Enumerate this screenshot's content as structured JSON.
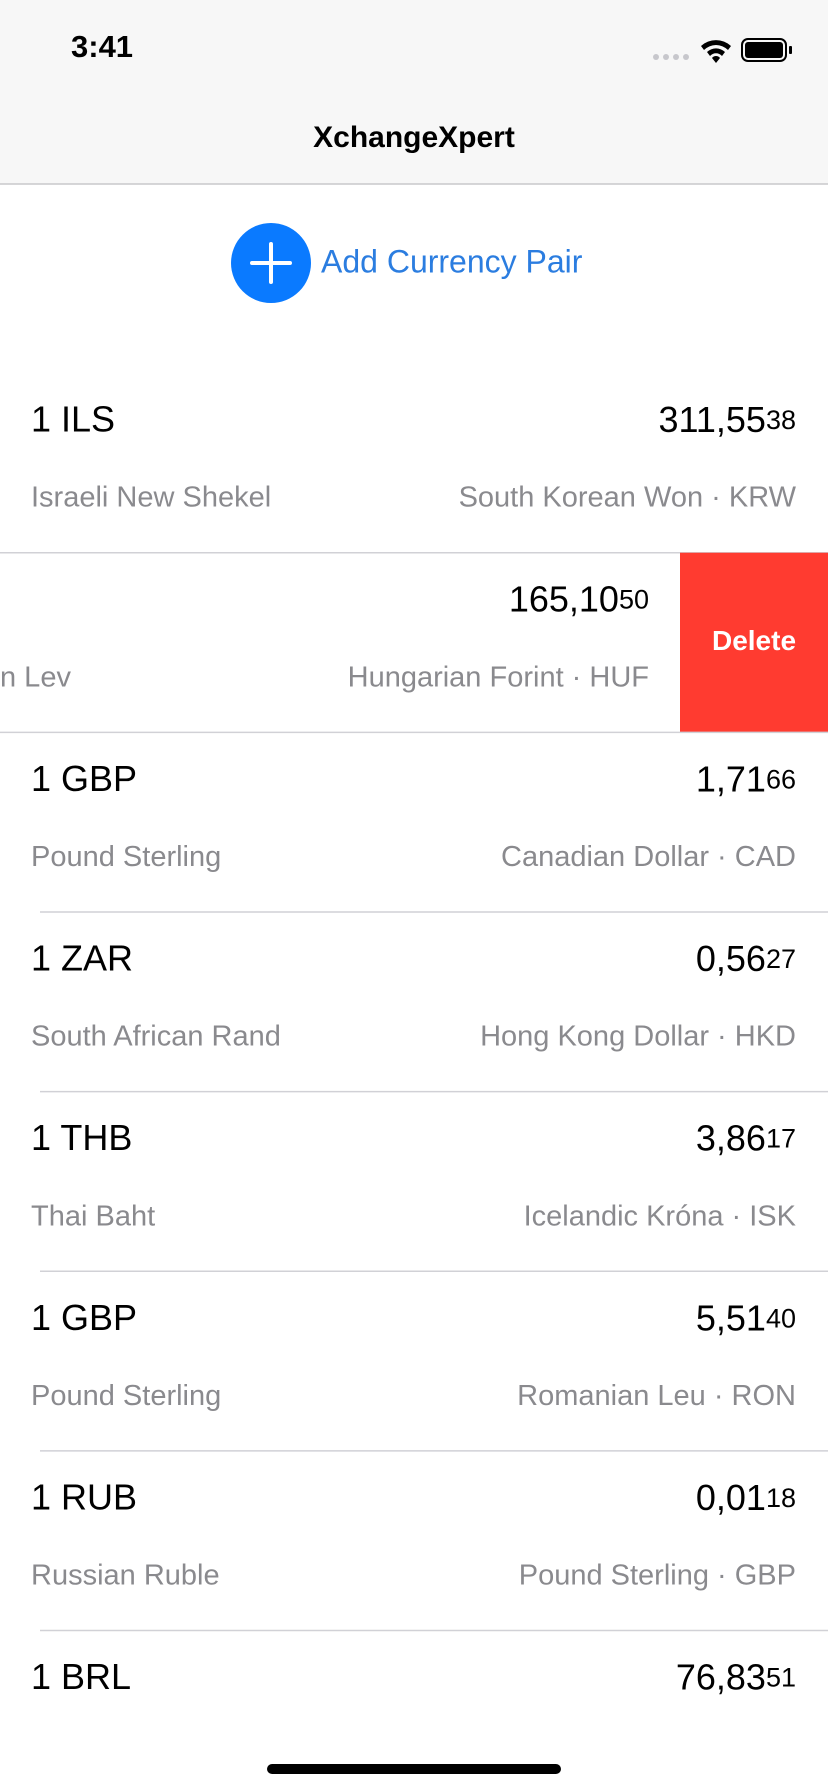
{
  "status_bar": {
    "time": "3:41"
  },
  "nav": {
    "title": "XchangeXpert"
  },
  "add_button": {
    "label": "Add Currency Pair"
  },
  "rows": [
    {
      "base": "1 ILS",
      "base_name": "Israeli New Shekel",
      "rate": "311,55",
      "rate_small": "38",
      "quote": "South Korean Won · KRW"
    },
    {
      "base_name": "n Lev",
      "rate": "165,10",
      "rate_small": "50",
      "quote": "Hungarian Forint · HUF",
      "action": "Delete"
    },
    {
      "base": "1 GBP",
      "base_name": "Pound Sterling",
      "rate": "1,71",
      "rate_small": "66",
      "quote": "Canadian Dollar · CAD"
    },
    {
      "base": "1 ZAR",
      "base_name": "South African Rand",
      "rate": "0,56",
      "rate_small": "27",
      "quote": "Hong Kong Dollar · HKD"
    },
    {
      "base": "1 THB",
      "base_name": "Thai Baht",
      "rate": "3,86",
      "rate_small": "17",
      "quote": "Icelandic Króna · ISK"
    },
    {
      "base": "1 GBP",
      "base_name": "Pound Sterling",
      "rate": "5,51",
      "rate_small": "40",
      "quote": "Romanian Leu · RON"
    },
    {
      "base": "1 RUB",
      "base_name": "Russian Ruble",
      "rate": "0,01",
      "rate_small": "18",
      "quote": "Pound Sterling · GBP"
    },
    {
      "base": "1 BRL",
      "rate": "76,83",
      "rate_small": "51"
    }
  ]
}
